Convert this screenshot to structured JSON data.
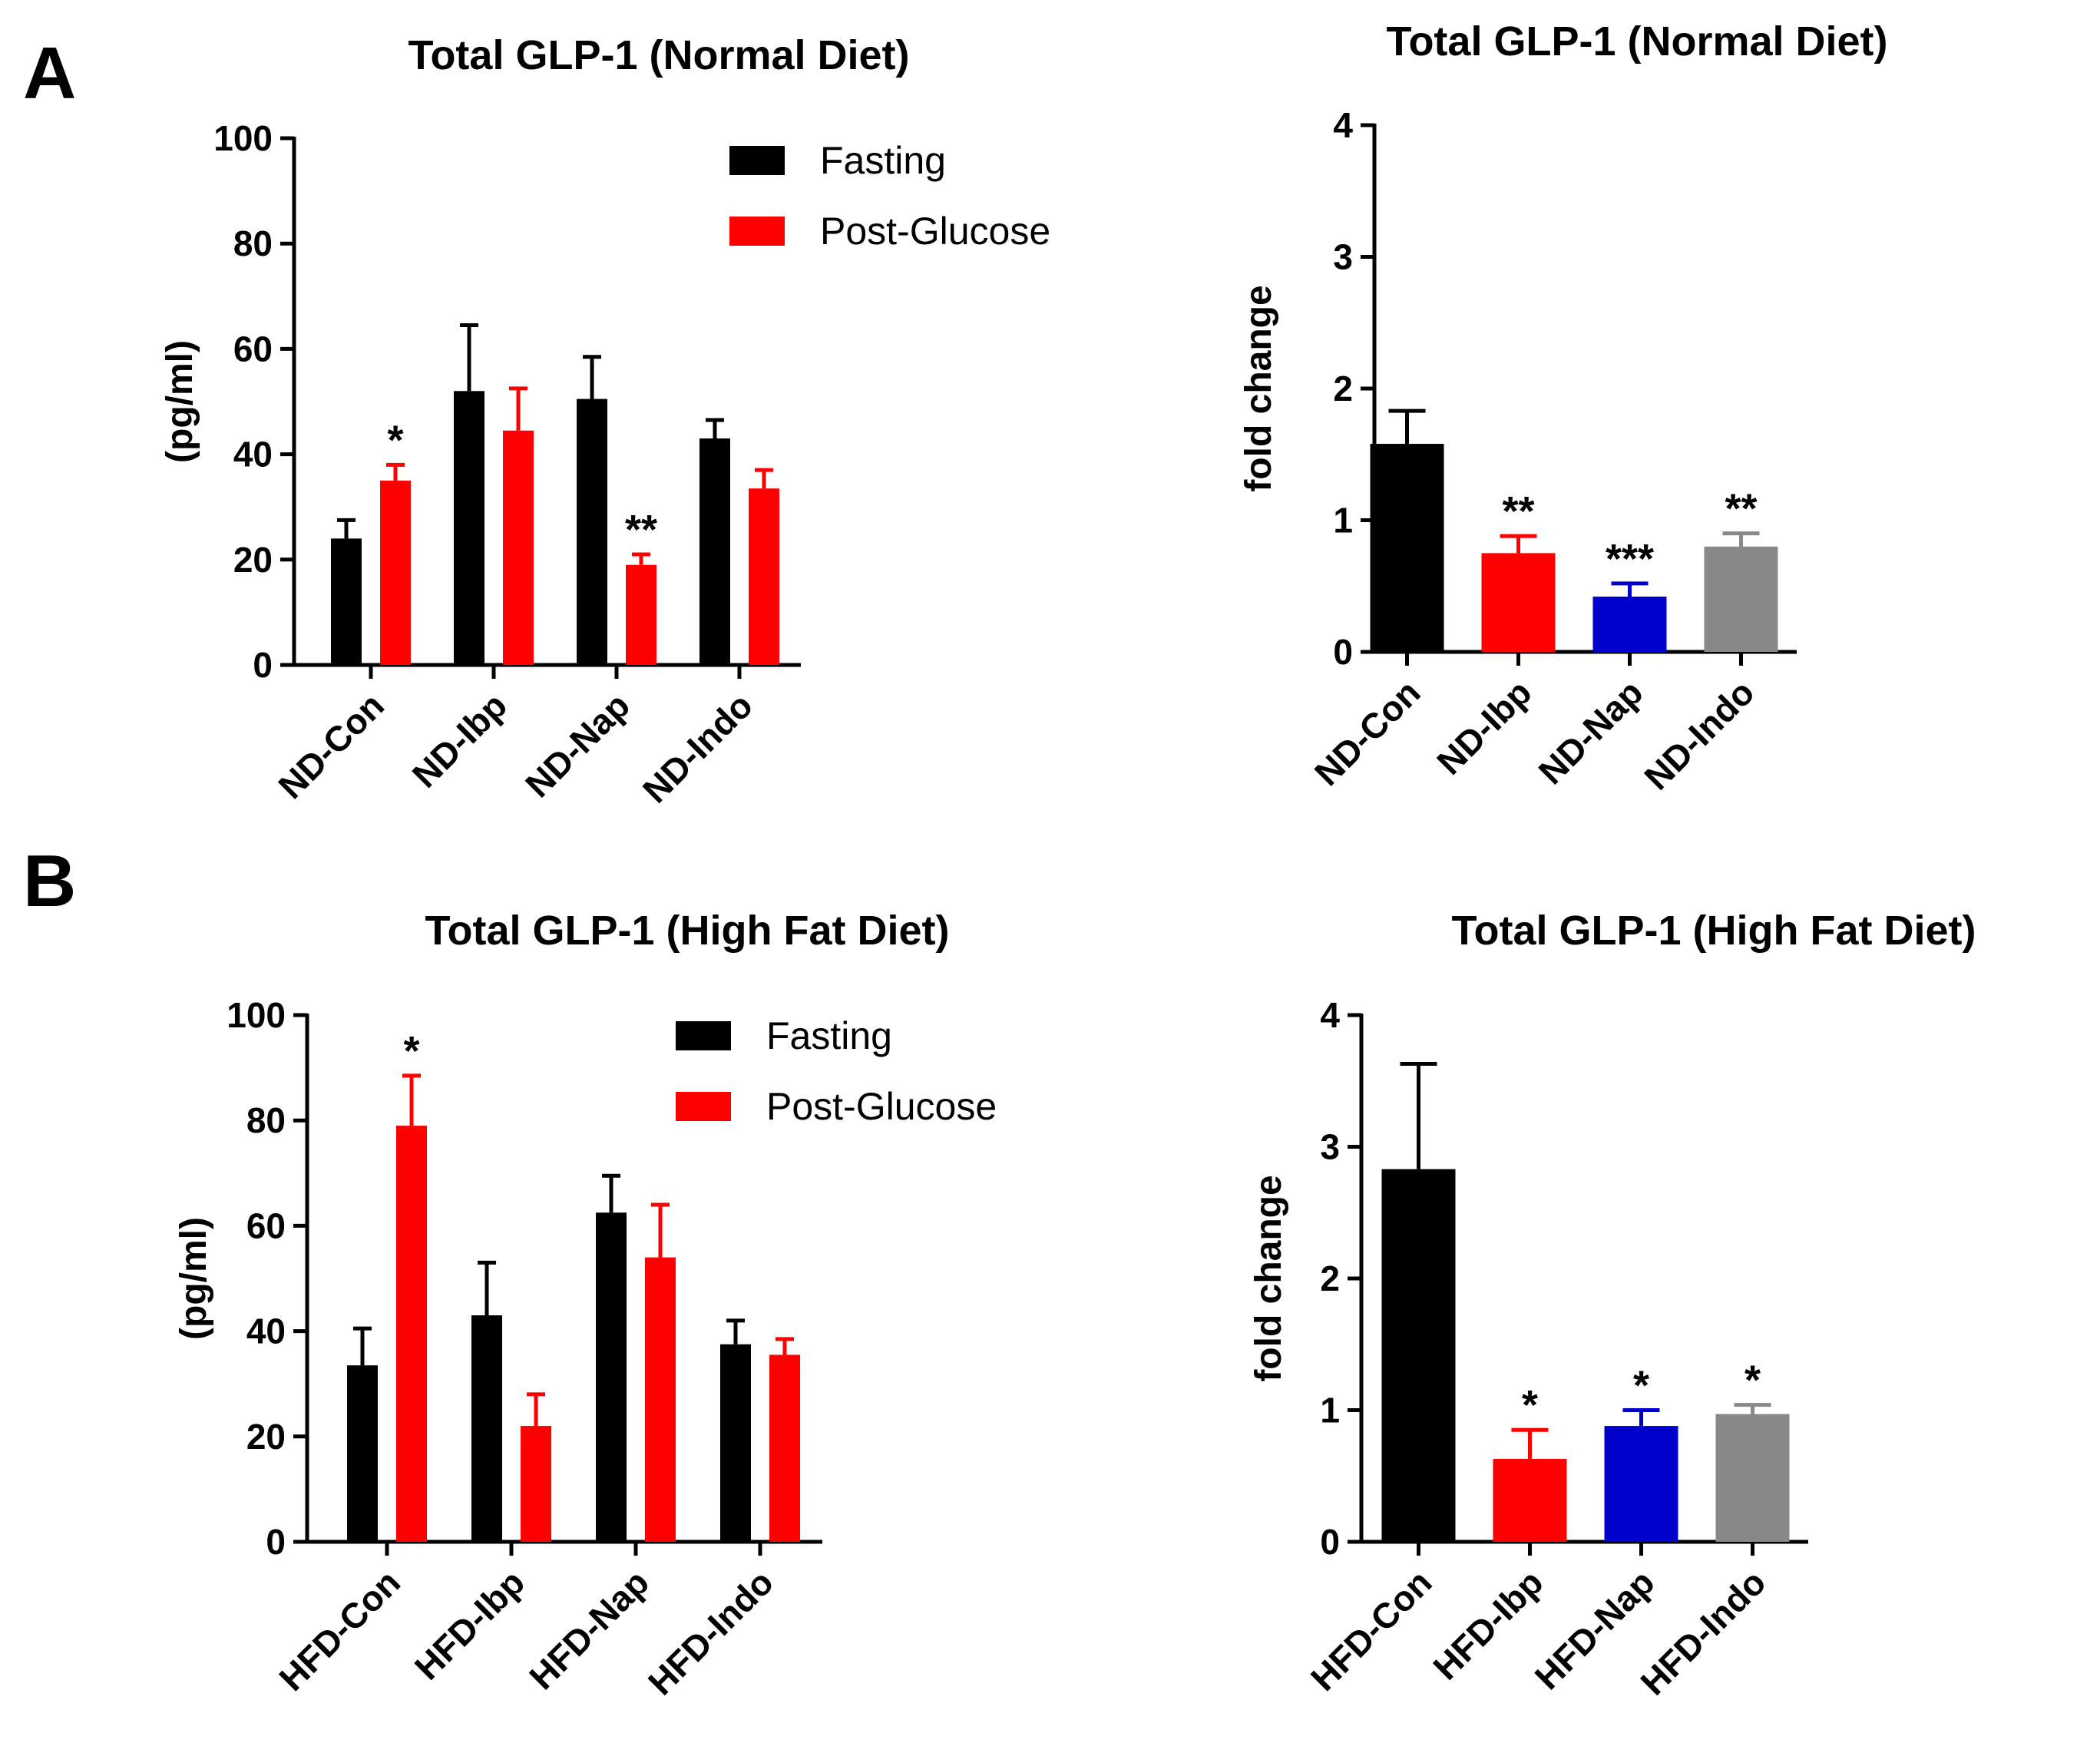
{
  "colors": {
    "black": "#000000",
    "red": "#ff0000",
    "blue": "#0000cc",
    "gray": "#888888"
  },
  "panels": [
    {
      "label": "A"
    },
    {
      "label": "B"
    }
  ],
  "chart_data": [
    {
      "type": "bar",
      "panel": "A",
      "title": "Total GLP-1 (Normal Diet)",
      "ylabel": "(pg/ml)",
      "xlabel": "",
      "ylim": [
        0,
        100
      ],
      "yticks": [
        0,
        20,
        40,
        60,
        80,
        100
      ],
      "categories": [
        "ND-Con",
        "ND-Ibp",
        "ND-Nap",
        "ND-Indo"
      ],
      "legend": "top-right",
      "series": [
        {
          "name": "Fasting",
          "color": "#000000",
          "values": [
            24,
            52,
            50.5,
            43
          ],
          "errors": [
            3.5,
            12.5,
            8,
            3.5
          ],
          "annotations": [
            "",
            "",
            "",
            ""
          ]
        },
        {
          "name": "Post-Glucose",
          "color": "#ff0000",
          "values": [
            35,
            44.5,
            19,
            33.5
          ],
          "errors": [
            3,
            8,
            2,
            3.5
          ],
          "annotations": [
            "*",
            "",
            "**",
            ""
          ]
        }
      ]
    },
    {
      "type": "bar",
      "panel": "A",
      "title": "Total GLP-1 (Normal Diet)",
      "ylabel": "fold change",
      "xlabel": "",
      "ylim": [
        0,
        4
      ],
      "yticks": [
        0,
        1,
        2,
        3,
        4
      ],
      "categories": [
        "ND-Con",
        "ND-Ibp",
        "ND-Nap",
        "ND-Indo"
      ],
      "series": [
        {
          "name": "fold change",
          "colors": [
            "#000000",
            "#ff0000",
            "#0000cc",
            "#888888"
          ],
          "values": [
            1.58,
            0.75,
            0.42,
            0.8
          ],
          "errors": [
            0.25,
            0.13,
            0.1,
            0.1
          ],
          "annotations": [
            "",
            "**",
            "***",
            "**"
          ]
        }
      ]
    },
    {
      "type": "bar",
      "panel": "B",
      "title": "Total GLP-1 (High Fat Diet)",
      "ylabel": "(pg/ml)",
      "xlabel": "",
      "ylim": [
        0,
        100
      ],
      "yticks": [
        0,
        20,
        40,
        60,
        80,
        100
      ],
      "categories": [
        "HFD-Con",
        "HFD-Ibp",
        "HFD-Nap",
        "HFD-Indo"
      ],
      "legend": "top-right",
      "series": [
        {
          "name": "Fasting",
          "color": "#000000",
          "values": [
            33.5,
            43,
            62.5,
            37.5
          ],
          "errors": [
            7,
            10,
            7,
            4.5
          ],
          "annotations": [
            "",
            "",
            "",
            ""
          ]
        },
        {
          "name": "Post-Glucose",
          "color": "#ff0000",
          "values": [
            79,
            22,
            54,
            35.5
          ],
          "errors": [
            9.5,
            6,
            10,
            3
          ],
          "annotations": [
            "*",
            "",
            "",
            ""
          ]
        }
      ]
    },
    {
      "type": "bar",
      "panel": "B",
      "title": "Total  GLP-1  (High Fat Diet)",
      "ylabel": "fold change",
      "xlabel": "",
      "ylim": [
        0,
        4
      ],
      "yticks": [
        0,
        1,
        2,
        3,
        4
      ],
      "categories": [
        "HFD-Con",
        "HFD-Ibp",
        "HFD-Nap",
        "HFD-Indo"
      ],
      "series": [
        {
          "name": "fold change",
          "colors": [
            "#000000",
            "#ff0000",
            "#0000cc",
            "#888888"
          ],
          "values": [
            2.83,
            0.63,
            0.88,
            0.97
          ],
          "errors": [
            0.8,
            0.22,
            0.12,
            0.07
          ],
          "annotations": [
            "",
            "*",
            "*",
            "*"
          ]
        }
      ]
    }
  ]
}
